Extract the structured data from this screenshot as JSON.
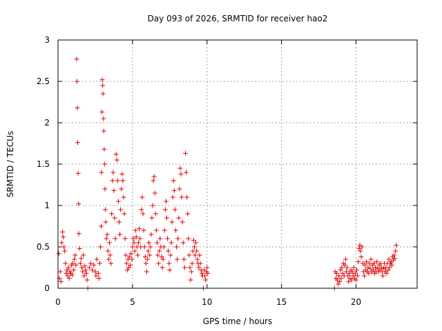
{
  "chart_data": {
    "type": "scatter",
    "title": "Day 093 of 2026, SRMTID for receiver hao2",
    "xlabel": "GPS time / hours",
    "ylabel": "SRMTID / TECUs",
    "xlim": [
      0,
      24.1
    ],
    "ylim": [
      0,
      3
    ],
    "xticks": [
      0,
      5,
      10,
      15,
      20
    ],
    "xtick_labels": [
      "0",
      "5",
      "10",
      "15",
      "20"
    ],
    "yticks": [
      0,
      0.5,
      1,
      1.5,
      2,
      2.5,
      3
    ],
    "ytick_labels": [
      "0",
      "0.5",
      "1",
      "1.5",
      "2",
      "2.5",
      "3"
    ],
    "grid": true,
    "marker": "plus",
    "color": "#e00000",
    "series": [
      {
        "name": "SRMTID",
        "points": [
          [
            0.05,
            0.42
          ],
          [
            0.1,
            0.12
          ],
          [
            0.15,
            0.2
          ],
          [
            0.2,
            0.08
          ],
          [
            0.25,
            0.55
          ],
          [
            0.3,
            0.68
          ],
          [
            0.35,
            0.62
          ],
          [
            0.4,
            0.5
          ],
          [
            0.45,
            0.45
          ],
          [
            0.5,
            0.3
          ],
          [
            0.55,
            0.18
          ],
          [
            0.6,
            0.22
          ],
          [
            0.65,
            0.15
          ],
          [
            0.7,
            0.25
          ],
          [
            0.75,
            0.12
          ],
          [
            0.8,
            0.2
          ],
          [
            0.85,
            0.18
          ],
          [
            0.9,
            0.28
          ],
          [
            0.95,
            0.16
          ],
          [
            1.0,
            0.3
          ],
          [
            1.05,
            0.22
          ],
          [
            1.1,
            0.35
          ],
          [
            1.15,
            0.4
          ],
          [
            1.2,
            0.28
          ],
          [
            1.25,
            2.77
          ],
          [
            1.27,
            2.5
          ],
          [
            1.3,
            2.18
          ],
          [
            1.32,
            1.76
          ],
          [
            1.35,
            1.39
          ],
          [
            1.38,
            1.02
          ],
          [
            1.4,
            0.66
          ],
          [
            1.45,
            0.48
          ],
          [
            1.5,
            0.3
          ],
          [
            1.55,
            0.36
          ],
          [
            1.6,
            0.25
          ],
          [
            1.65,
            0.2
          ],
          [
            1.7,
            0.4
          ],
          [
            1.75,
            0.15
          ],
          [
            1.8,
            0.27
          ],
          [
            1.85,
            0.22
          ],
          [
            1.9,
            0.18
          ],
          [
            1.95,
            0.1
          ],
          [
            2.0,
            0.0
          ],
          [
            2.1,
            0.25
          ],
          [
            2.2,
            0.3
          ],
          [
            2.3,
            0.22
          ],
          [
            2.4,
            0.28
          ],
          [
            2.5,
            0.2
          ],
          [
            2.55,
            0.15
          ],
          [
            2.6,
            0.35
          ],
          [
            2.7,
            0.18
          ],
          [
            2.75,
            0.12
          ],
          [
            2.8,
            0.3
          ],
          [
            2.85,
            0.5
          ],
          [
            2.9,
            0.75
          ],
          [
            2.92,
            1.4
          ],
          [
            2.95,
            2.13
          ],
          [
            2.97,
            2.52
          ],
          [
            3.0,
            2.45
          ],
          [
            3.02,
            2.35
          ],
          [
            3.05,
            2.05
          ],
          [
            3.07,
            1.9
          ],
          [
            3.1,
            1.68
          ],
          [
            3.12,
            1.5
          ],
          [
            3.15,
            1.2
          ],
          [
            3.18,
            0.95
          ],
          [
            3.2,
            0.8
          ],
          [
            3.25,
            0.6
          ],
          [
            3.3,
            0.65
          ],
          [
            3.35,
            0.45
          ],
          [
            3.4,
            0.35
          ],
          [
            3.45,
            0.55
          ],
          [
            3.5,
            0.4
          ],
          [
            3.55,
            0.3
          ],
          [
            3.6,
            0.9
          ],
          [
            3.65,
            1.3
          ],
          [
            3.7,
            1.4
          ],
          [
            3.75,
            1.18
          ],
          [
            3.8,
            0.85
          ],
          [
            3.85,
            0.6
          ],
          [
            3.9,
            1.62
          ],
          [
            3.95,
            1.55
          ],
          [
            4.0,
            1.3
          ],
          [
            4.05,
            1.05
          ],
          [
            4.1,
            0.8
          ],
          [
            4.15,
            0.65
          ],
          [
            4.2,
            0.95
          ],
          [
            4.25,
            1.2
          ],
          [
            4.3,
            1.38
          ],
          [
            4.35,
            1.3
          ],
          [
            4.4,
            1.1
          ],
          [
            4.45,
            0.9
          ],
          [
            4.5,
            0.6
          ],
          [
            4.55,
            0.4
          ],
          [
            4.6,
            0.3
          ],
          [
            4.65,
            0.22
          ],
          [
            4.7,
            0.35
          ],
          [
            4.75,
            0.25
          ],
          [
            4.8,
            0.38
          ],
          [
            4.85,
            0.28
          ],
          [
            4.9,
            0.42
          ],
          [
            4.95,
            0.35
          ],
          [
            5.0,
            0.5
          ],
          [
            5.05,
            0.6
          ],
          [
            5.1,
            0.55
          ],
          [
            5.15,
            0.45
          ],
          [
            5.2,
            0.7
          ],
          [
            5.25,
            0.62
          ],
          [
            5.3,
            0.5
          ],
          [
            5.35,
            0.4
          ],
          [
            5.4,
            0.55
          ],
          [
            5.45,
            0.72
          ],
          [
            5.5,
            0.6
          ],
          [
            5.55,
            0.5
          ],
          [
            5.6,
            0.95
          ],
          [
            5.65,
            1.1
          ],
          [
            5.7,
            0.9
          ],
          [
            5.75,
            0.7
          ],
          [
            5.8,
            0.5
          ],
          [
            5.85,
            0.38
          ],
          [
            5.9,
            0.3
          ],
          [
            5.95,
            0.2
          ],
          [
            6.0,
            0.35
          ],
          [
            6.05,
            0.45
          ],
          [
            6.1,
            0.55
          ],
          [
            6.15,
            0.4
          ],
          [
            6.2,
            0.5
          ],
          [
            6.25,
            0.65
          ],
          [
            6.3,
            0.85
          ],
          [
            6.35,
            1.0
          ],
          [
            6.4,
            1.3
          ],
          [
            6.45,
            1.35
          ],
          [
            6.5,
            1.15
          ],
          [
            6.55,
            0.9
          ],
          [
            6.6,
            0.7
          ],
          [
            6.65,
            0.55
          ],
          [
            6.7,
            0.4
          ],
          [
            6.75,
            0.3
          ],
          [
            6.8,
            0.45
          ],
          [
            6.85,
            0.6
          ],
          [
            6.9,
            0.5
          ],
          [
            6.95,
            0.38
          ],
          [
            7.0,
            0.25
          ],
          [
            7.05,
            0.35
          ],
          [
            7.1,
            0.5
          ],
          [
            7.15,
            0.7
          ],
          [
            7.2,
            0.95
          ],
          [
            7.25,
            1.05
          ],
          [
            7.3,
            0.85
          ],
          [
            7.35,
            0.6
          ],
          [
            7.4,
            0.45
          ],
          [
            7.45,
            0.3
          ],
          [
            7.5,
            0.22
          ],
          [
            7.55,
            0.4
          ],
          [
            7.6,
            0.55
          ],
          [
            7.65,
            0.8
          ],
          [
            7.7,
            1.1
          ],
          [
            7.75,
            1.3
          ],
          [
            7.8,
            1.18
          ],
          [
            7.85,
            0.95
          ],
          [
            7.9,
            0.7
          ],
          [
            7.95,
            0.5
          ],
          [
            8.0,
            0.35
          ],
          [
            8.05,
            0.6
          ],
          [
            8.1,
            0.85
          ],
          [
            8.15,
            1.2
          ],
          [
            8.2,
            1.45
          ],
          [
            8.25,
            1.38
          ],
          [
            8.3,
            1.1
          ],
          [
            8.35,
            0.8
          ],
          [
            8.4,
            0.55
          ],
          [
            8.45,
            0.35
          ],
          [
            8.5,
            0.25
          ],
          [
            8.55,
            1.63
          ],
          [
            8.6,
            1.4
          ],
          [
            8.65,
            1.1
          ],
          [
            8.7,
            0.9
          ],
          [
            8.75,
            0.6
          ],
          [
            8.8,
            0.4
          ],
          [
            8.85,
            0.25
          ],
          [
            8.9,
            0.1
          ],
          [
            8.95,
            0.2
          ],
          [
            9.0,
            0.3
          ],
          [
            9.05,
            0.45
          ],
          [
            9.1,
            0.58
          ],
          [
            9.15,
            0.5
          ],
          [
            9.2,
            0.4
          ],
          [
            9.25,
            0.55
          ],
          [
            9.3,
            0.45
          ],
          [
            9.35,
            0.35
          ],
          [
            9.4,
            0.3
          ],
          [
            9.45,
            0.25
          ],
          [
            9.5,
            0.4
          ],
          [
            9.55,
            0.3
          ],
          [
            9.6,
            0.22
          ],
          [
            9.65,
            0.18
          ],
          [
            9.7,
            0.15
          ],
          [
            9.75,
            0.0
          ],
          [
            9.8,
            0.22
          ],
          [
            9.85,
            0.15
          ],
          [
            9.9,
            0.1
          ],
          [
            9.95,
            0.2
          ],
          [
            10.0,
            0.25
          ],
          [
            10.05,
            0.18
          ],
          [
            18.55,
            0.0
          ],
          [
            18.6,
            0.2
          ],
          [
            18.65,
            0.12
          ],
          [
            18.7,
            0.18
          ],
          [
            18.75,
            0.1
          ],
          [
            18.8,
            0.05
          ],
          [
            18.85,
            0.15
          ],
          [
            18.9,
            0.08
          ],
          [
            18.95,
            0.22
          ],
          [
            19.0,
            0.12
          ],
          [
            19.05,
            0.25
          ],
          [
            19.1,
            0.18
          ],
          [
            19.15,
            0.3
          ],
          [
            19.2,
            0.15
          ],
          [
            19.25,
            0.28
          ],
          [
            19.3,
            0.35
          ],
          [
            19.35,
            0.2
          ],
          [
            19.4,
            0.25
          ],
          [
            19.45,
            0.15
          ],
          [
            19.5,
            0.08
          ],
          [
            19.55,
            0.18
          ],
          [
            19.6,
            0.12
          ],
          [
            19.65,
            0.22
          ],
          [
            19.7,
            0.1
          ],
          [
            19.75,
            0.2
          ],
          [
            19.8,
            0.15
          ],
          [
            19.85,
            0.25
          ],
          [
            19.9,
            0.12
          ],
          [
            19.95,
            0.18
          ],
          [
            20.0,
            0.1
          ],
          [
            20.05,
            0.22
          ],
          [
            20.1,
            0.15
          ],
          [
            20.15,
            0.32
          ],
          [
            20.2,
            0.48
          ],
          [
            20.25,
            0.52
          ],
          [
            20.3,
            0.45
          ],
          [
            20.35,
            0.38
          ],
          [
            20.4,
            0.5
          ],
          [
            20.45,
            0.3
          ],
          [
            20.5,
            0.2
          ],
          [
            20.55,
            0.15
          ],
          [
            20.6,
            0.28
          ],
          [
            20.65,
            0.22
          ],
          [
            20.7,
            0.32
          ],
          [
            20.75,
            0.2
          ],
          [
            20.8,
            0.25
          ],
          [
            20.85,
            0.18
          ],
          [
            20.9,
            0.3
          ],
          [
            20.95,
            0.24
          ],
          [
            21.0,
            0.35
          ],
          [
            21.05,
            0.2
          ],
          [
            21.1,
            0.28
          ],
          [
            21.15,
            0.22
          ],
          [
            21.2,
            0.3
          ],
          [
            21.25,
            0.18
          ],
          [
            21.3,
            0.25
          ],
          [
            21.35,
            0.2
          ],
          [
            21.4,
            0.32
          ],
          [
            21.45,
            0.24
          ],
          [
            21.5,
            0.2
          ],
          [
            21.55,
            0.28
          ],
          [
            21.6,
            0.22
          ],
          [
            21.65,
            0.3
          ],
          [
            21.7,
            0.25
          ],
          [
            21.75,
            0.2
          ],
          [
            21.8,
            0.15
          ],
          [
            21.85,
            0.24
          ],
          [
            21.9,
            0.3
          ],
          [
            21.95,
            0.2
          ],
          [
            22.0,
            0.25
          ],
          [
            22.05,
            0.18
          ],
          [
            22.1,
            0.3
          ],
          [
            22.15,
            0.22
          ],
          [
            22.2,
            0.35
          ],
          [
            22.25,
            0.25
          ],
          [
            22.3,
            0.3
          ],
          [
            22.35,
            0.32
          ],
          [
            22.4,
            0.28
          ],
          [
            22.45,
            0.38
          ],
          [
            22.5,
            0.34
          ],
          [
            22.55,
            0.4
          ],
          [
            22.6,
            0.36
          ],
          [
            22.65,
            0.45
          ],
          [
            22.7,
            0.52
          ]
        ]
      }
    ]
  }
}
